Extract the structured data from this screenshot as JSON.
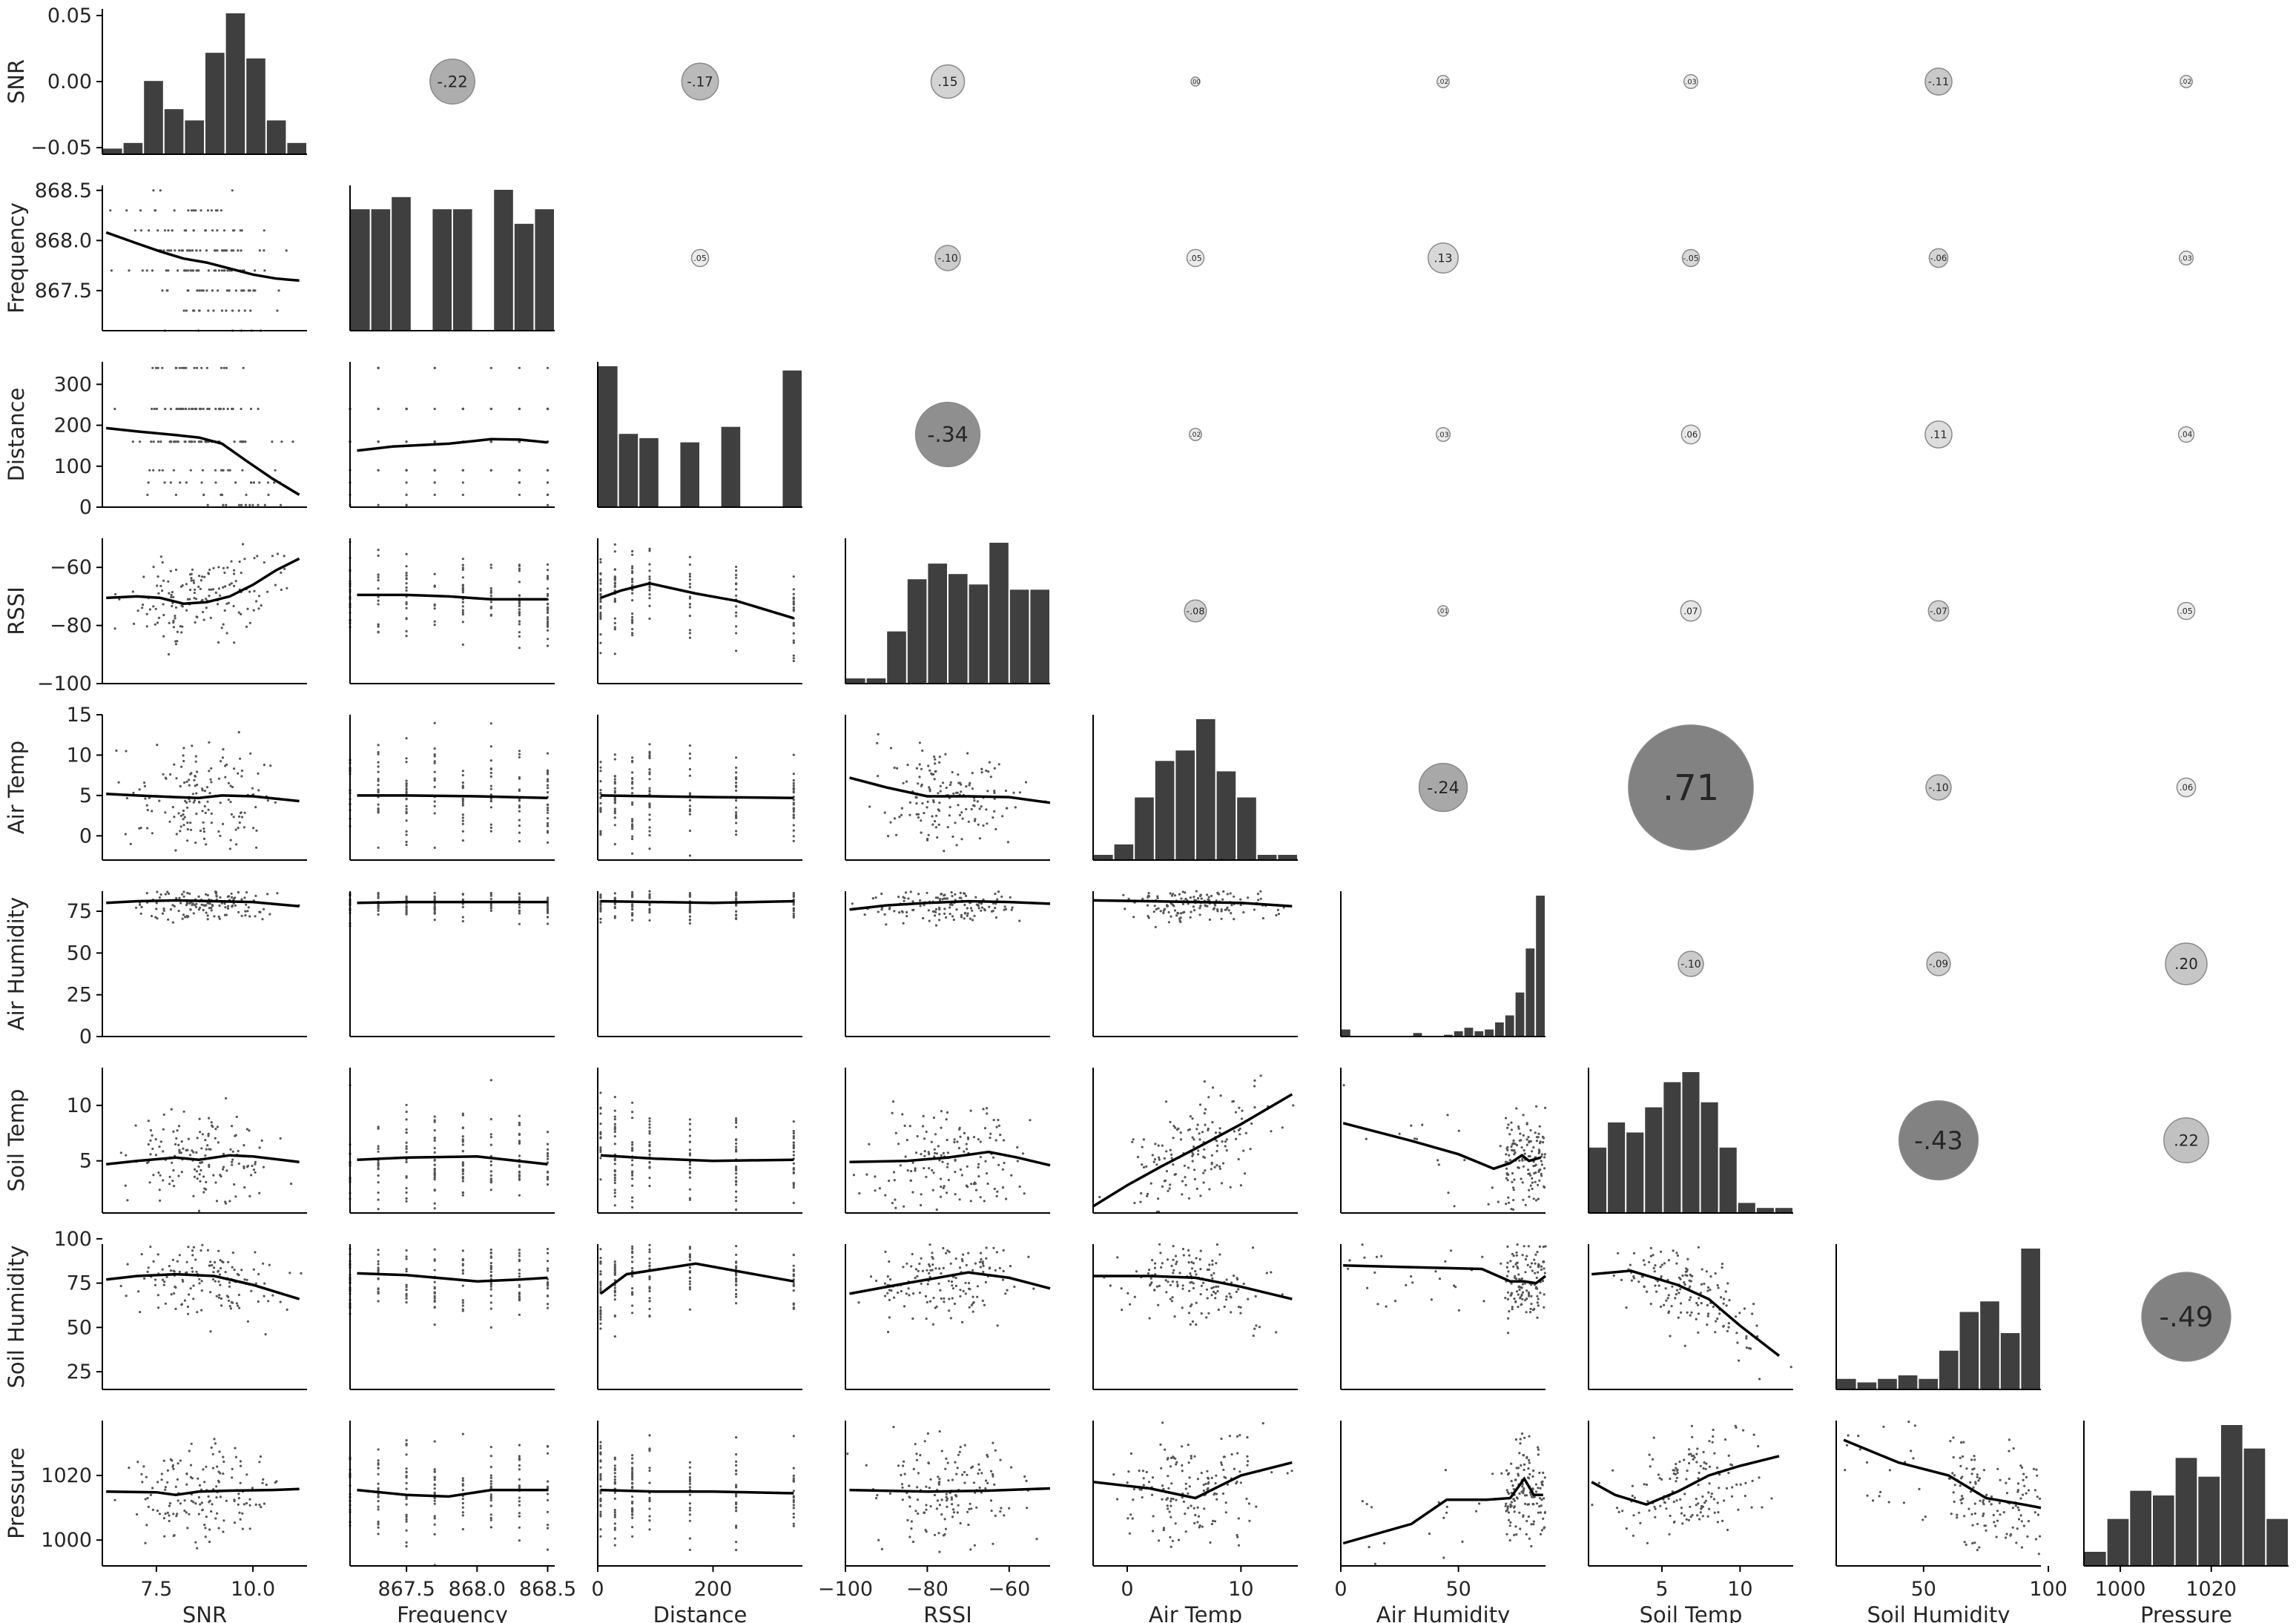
{
  "chart_data": {
    "type": "pairplot",
    "description_layout": "lower: scatter + lowess, diagonal: histogram, upper: correlation bubbles",
    "variables": [
      "SNR",
      "Frequency",
      "Distance",
      "RSSI",
      "Air Temp",
      "Air Humidity",
      "Soil Temp",
      "Soil Humidity",
      "Pressure"
    ],
    "colors": {
      "bars": "#3f3f3f",
      "points": "#555555",
      "line": "#000000"
    },
    "ranges": [
      [
        6.1,
        11.4
      ],
      [
        867.1,
        868.55
      ],
      [
        0,
        355
      ],
      [
        -100,
        -50
      ],
      [
        -3,
        15
      ],
      [
        0,
        87
      ],
      [
        0.3,
        13.4
      ],
      [
        15,
        97
      ],
      [
        992,
        1037
      ]
    ],
    "y_ranges": {
      "SNR": [
        -0.055,
        0.055
      ],
      "Frequency": [
        867.1,
        868.55
      ],
      "Distance": [
        0,
        355
      ],
      "RSSI": [
        -100,
        -50
      ],
      "Air Temp": [
        -3,
        15
      ],
      "Air Humidity": [
        0,
        87
      ],
      "Soil Temp": [
        0.3,
        13.4
      ],
      "Soil Humidity": [
        15,
        97
      ],
      "Pressure": [
        992,
        1037
      ]
    },
    "x_ticks": {
      "SNR": [
        "7.5",
        "10.0"
      ],
      "Frequency": [
        "867.5",
        "868.0",
        "868.5"
      ],
      "Distance": [
        "0",
        "200"
      ],
      "RSSI": [
        "−100",
        "−80",
        "−60"
      ],
      "Air Temp": [
        "0",
        "10"
      ],
      "Air Humidity": [
        "0",
        "50"
      ],
      "Soil Temp": [
        "5",
        "10"
      ],
      "Soil Humidity": [
        "50",
        "100"
      ],
      "Pressure": [
        "1000",
        "1020"
      ]
    },
    "y_ticks": {
      "SNR": [
        "0.05",
        "0.00",
        "−0.05"
      ],
      "Frequency": [
        "868.5",
        "868.0",
        "867.5"
      ],
      "Distance": [
        "300",
        "200",
        "100",
        "0"
      ],
      "RSSI": [
        "−60",
        "−80",
        "−100"
      ],
      "Air Temp": [
        "15",
        "10",
        "5",
        "0"
      ],
      "Air Humidity": [
        "75",
        "50",
        "25",
        "0"
      ],
      "Soil Temp": [
        "10",
        "5"
      ],
      "Soil Humidity": [
        "100",
        "75",
        "50",
        "25"
      ],
      "Pressure": [
        "1020",
        "1000"
      ]
    },
    "histograms": [
      [
        1,
        2,
        13,
        8,
        6,
        18,
        25,
        17,
        6,
        2
      ],
      [
        5,
        5,
        5.5,
        0,
        5,
        5,
        0,
        5.8,
        4.4,
        5
      ],
      [
        100,
        52,
        49,
        0,
        46,
        0,
        57,
        0,
        0,
        97
      ],
      [
        1,
        1,
        10,
        20,
        23,
        21,
        19,
        27,
        18,
        18
      ],
      [
        1,
        3,
        12,
        19,
        21,
        27,
        17,
        12,
        1,
        1
      ],
      [
        0.4,
        0,
        0,
        0,
        0,
        0,
        0,
        0.2,
        0,
        0,
        0.1,
        0.3,
        0.5,
        0.3,
        0.4,
        0.8,
        1.2,
        2.5,
        5.0,
        8.0
      ],
      [
        13,
        18,
        16,
        21,
        26,
        28,
        22,
        13,
        2,
        1,
        1
      ],
      [
        3,
        2,
        3,
        4,
        3,
        11,
        22,
        25,
        16,
        40
      ],
      [
        3,
        10,
        16,
        15,
        23,
        19,
        30,
        25,
        10
      ]
    ],
    "correlations": [
      [
        "SNR",
        "Frequency",
        "-.22"
      ],
      [
        "SNR",
        "Distance",
        "-.17"
      ],
      [
        "SNR",
        "RSSI",
        ".15"
      ],
      [
        "SNR",
        "Air Temp",
        ".00"
      ],
      [
        "SNR",
        "Air Humidity",
        ".02"
      ],
      [
        "SNR",
        "Soil Temp",
        ".03"
      ],
      [
        "SNR",
        "Soil Humidity",
        "-.11"
      ],
      [
        "SNR",
        "Pressure",
        ".02"
      ],
      [
        "Frequency",
        "Distance",
        ".05"
      ],
      [
        "Frequency",
        "RSSI",
        "-.10"
      ],
      [
        "Frequency",
        "Air Temp",
        ".05"
      ],
      [
        "Frequency",
        "Air Humidity",
        ".13"
      ],
      [
        "Frequency",
        "Soil Temp",
        "-.05"
      ],
      [
        "Frequency",
        "Soil Humidity",
        "-.06"
      ],
      [
        "Frequency",
        "Pressure",
        ".03"
      ],
      [
        "Distance",
        "RSSI",
        "-.34"
      ],
      [
        "Distance",
        "Air Temp",
        ".02"
      ],
      [
        "Distance",
        "Air Humidity",
        ".03"
      ],
      [
        "Distance",
        "Soil Temp",
        ".06"
      ],
      [
        "Distance",
        "Soil Humidity",
        ".11"
      ],
      [
        "Distance",
        "Pressure",
        ".04"
      ],
      [
        "RSSI",
        "Air Temp",
        "-.08"
      ],
      [
        "RSSI",
        "Air Humidity",
        ".01"
      ],
      [
        "RSSI",
        "Soil Temp",
        ".07"
      ],
      [
        "RSSI",
        "Soil Humidity",
        "-.07"
      ],
      [
        "RSSI",
        "Pressure",
        ".05"
      ],
      [
        "Air Temp",
        "Air Humidity",
        "-.24"
      ],
      [
        "Air Temp",
        "Soil Temp",
        ".71"
      ],
      [
        "Air Temp",
        "Soil Humidity",
        "-.10"
      ],
      [
        "Air Temp",
        "Pressure",
        ".06"
      ],
      [
        "Air Humidity",
        "Soil Temp",
        "-.10"
      ],
      [
        "Air Humidity",
        "Soil Humidity",
        "-.09"
      ],
      [
        "Air Humidity",
        "Pressure",
        ".20"
      ],
      [
        "Soil Temp",
        "Soil Humidity",
        "-.43"
      ],
      [
        "Soil Temp",
        "Pressure",
        ".22"
      ],
      [
        "Soil Humidity",
        "Pressure",
        "-.49"
      ]
    ],
    "lowess": {
      "Frequency|SNR": [
        [
          6.2,
          868.08
        ],
        [
          7.0,
          867.97
        ],
        [
          7.6,
          867.89
        ],
        [
          8.2,
          867.82
        ],
        [
          8.8,
          867.78
        ],
        [
          9.4,
          867.72
        ],
        [
          10.0,
          867.66
        ],
        [
          10.6,
          867.62
        ],
        [
          11.2,
          867.6
        ]
      ],
      "Distance|SNR": [
        [
          6.2,
          193
        ],
        [
          7.0,
          185
        ],
        [
          8.0,
          176
        ],
        [
          8.6,
          170
        ],
        [
          9.2,
          155
        ],
        [
          9.8,
          115
        ],
        [
          10.5,
          70
        ],
        [
          11.2,
          30
        ]
      ],
      "Distance|Frequency": [
        [
          867.15,
          138
        ],
        [
          867.4,
          148
        ],
        [
          867.8,
          155
        ],
        [
          868.1,
          166
        ],
        [
          868.3,
          165
        ],
        [
          868.5,
          158
        ]
      ],
      "RSSI|SNR": [
        [
          6.2,
          -70.5
        ],
        [
          7.0,
          -70
        ],
        [
          7.6,
          -70.5
        ],
        [
          8.2,
          -72.5
        ],
        [
          8.8,
          -72
        ],
        [
          9.4,
          -70
        ],
        [
          10.0,
          -66
        ],
        [
          10.6,
          -61
        ],
        [
          11.2,
          -57
        ]
      ],
      "RSSI|Frequency": [
        [
          867.15,
          -69.5
        ],
        [
          867.5,
          -69.5
        ],
        [
          867.8,
          -70
        ],
        [
          868.1,
          -71
        ],
        [
          868.3,
          -71
        ],
        [
          868.5,
          -71
        ]
      ],
      "RSSI|Distance": [
        [
          5,
          -70.5
        ],
        [
          40,
          -68
        ],
        [
          90,
          -65.5
        ],
        [
          170,
          -69
        ],
        [
          240,
          -71.5
        ],
        [
          340,
          -77.5
        ]
      ],
      "Air Temp|SNR": [
        [
          6.2,
          5.2
        ],
        [
          7.0,
          5.0
        ],
        [
          8.0,
          4.8
        ],
        [
          8.6,
          4.7
        ],
        [
          9.2,
          5.0
        ],
        [
          10.0,
          4.9
        ],
        [
          10.6,
          4.6
        ],
        [
          11.2,
          4.3
        ]
      ],
      "Air Temp|Frequency": [
        [
          867.15,
          5.0
        ],
        [
          867.5,
          5.0
        ],
        [
          868.0,
          4.9
        ],
        [
          868.5,
          4.7
        ]
      ],
      "Air Temp|Distance": [
        [
          5,
          5.0
        ],
        [
          100,
          4.9
        ],
        [
          200,
          4.8
        ],
        [
          340,
          4.7
        ]
      ],
      "Air Temp|RSSI": [
        [
          -99,
          7.2
        ],
        [
          -90,
          6.0
        ],
        [
          -80,
          4.9
        ],
        [
          -70,
          4.9
        ],
        [
          -60,
          4.8
        ],
        [
          -50,
          4.1
        ]
      ],
      "Air Humidity|SNR": [
        [
          6.2,
          80
        ],
        [
          7.0,
          81
        ],
        [
          8.0,
          81.5
        ],
        [
          9.0,
          81
        ],
        [
          10.0,
          80.5
        ],
        [
          11.2,
          78
        ]
      ],
      "Air Humidity|Frequency": [
        [
          867.15,
          80
        ],
        [
          867.5,
          80.5
        ],
        [
          868.0,
          80.5
        ],
        [
          868.5,
          80.5
        ]
      ],
      "Air Humidity|Distance": [
        [
          5,
          81
        ],
        [
          100,
          80.5
        ],
        [
          200,
          80
        ],
        [
          340,
          81
        ]
      ],
      "Air Humidity|RSSI": [
        [
          -99,
          76
        ],
        [
          -90,
          78.5
        ],
        [
          -80,
          80
        ],
        [
          -70,
          81
        ],
        [
          -60,
          80.5
        ],
        [
          -50,
          79.5
        ]
      ],
      "Air Humidity|Air Temp": [
        [
          -3,
          81.5
        ],
        [
          2,
          81
        ],
        [
          6,
          80.5
        ],
        [
          10,
          80
        ],
        [
          14.5,
          78
        ]
      ],
      "Soil Temp|SNR": [
        [
          6.2,
          4.7
        ],
        [
          7.0,
          5.0
        ],
        [
          8.0,
          5.3
        ],
        [
          8.6,
          5.1
        ],
        [
          9.4,
          5.5
        ],
        [
          10.0,
          5.4
        ],
        [
          11.2,
          4.9
        ]
      ],
      "Soil Temp|Frequency": [
        [
          867.15,
          5.1
        ],
        [
          867.5,
          5.3
        ],
        [
          868.0,
          5.4
        ],
        [
          868.5,
          4.7
        ]
      ],
      "Soil Temp|Distance": [
        [
          5,
          5.5
        ],
        [
          100,
          5.2
        ],
        [
          200,
          5.0
        ],
        [
          340,
          5.1
        ]
      ],
      "Soil Temp|RSSI": [
        [
          -99,
          4.9
        ],
        [
          -85,
          5.0
        ],
        [
          -75,
          5.3
        ],
        [
          -65,
          5.8
        ],
        [
          -58,
          5.3
        ],
        [
          -50,
          4.6
        ]
      ],
      "Soil Temp|Air Temp": [
        [
          -3,
          0.9
        ],
        [
          0,
          2.8
        ],
        [
          3,
          4.5
        ],
        [
          6,
          6.1
        ],
        [
          10,
          8.3
        ],
        [
          14.5,
          11.0
        ]
      ],
      "Soil Temp|Air Humidity": [
        [
          1,
          8.4
        ],
        [
          30,
          6.8
        ],
        [
          50,
          5.6
        ],
        [
          65,
          4.3
        ],
        [
          72,
          4.8
        ],
        [
          77,
          5.5
        ],
        [
          80,
          5.0
        ],
        [
          85,
          5.3
        ]
      ],
      "Soil Humidity|SNR": [
        [
          6.2,
          77
        ],
        [
          7.0,
          79
        ],
        [
          8.0,
          80
        ],
        [
          9.0,
          79
        ],
        [
          10.0,
          74
        ],
        [
          11.2,
          66
        ]
      ],
      "Soil Humidity|Frequency": [
        [
          867.15,
          80.5
        ],
        [
          867.5,
          79.5
        ],
        [
          868.0,
          76
        ],
        [
          868.3,
          77
        ],
        [
          868.5,
          78
        ]
      ],
      "Soil Humidity|Distance": [
        [
          5,
          69
        ],
        [
          50,
          80
        ],
        [
          170,
          86
        ],
        [
          340,
          76
        ]
      ],
      "Soil Humidity|RSSI": [
        [
          -99,
          69
        ],
        [
          -85,
          75
        ],
        [
          -70,
          81
        ],
        [
          -60,
          78
        ],
        [
          -50,
          72
        ]
      ],
      "Soil Humidity|Air Temp": [
        [
          -3,
          79
        ],
        [
          2,
          79
        ],
        [
          6,
          78
        ],
        [
          10,
          73
        ],
        [
          14.5,
          66
        ]
      ],
      "Soil Humidity|Air Humidity": [
        [
          1,
          85
        ],
        [
          30,
          84
        ],
        [
          60,
          83
        ],
        [
          72,
          76
        ],
        [
          78,
          76
        ],
        [
          83,
          75
        ],
        [
          87,
          79
        ]
      ],
      "Soil Humidity|Soil Temp": [
        [
          0.5,
          80
        ],
        [
          3,
          82
        ],
        [
          6,
          74
        ],
        [
          8,
          66
        ],
        [
          10,
          51
        ],
        [
          12.5,
          34
        ]
      ],
      "Pressure|SNR": [
        [
          6.2,
          1015
        ],
        [
          7.5,
          1014.8
        ],
        [
          8.0,
          1014
        ],
        [
          8.6,
          1015
        ],
        [
          9.4,
          1015.3
        ],
        [
          10.5,
          1015.5
        ],
        [
          11.2,
          1015.8
        ]
      ],
      "Pressure|Frequency": [
        [
          867.15,
          1015.5
        ],
        [
          867.5,
          1014
        ],
        [
          867.8,
          1013.5
        ],
        [
          868.1,
          1015.5
        ],
        [
          868.5,
          1015.5
        ]
      ],
      "Pressure|Distance": [
        [
          5,
          1015.5
        ],
        [
          100,
          1015
        ],
        [
          200,
          1015
        ],
        [
          340,
          1014.5
        ]
      ],
      "Pressure|RSSI": [
        [
          -99,
          1015.5
        ],
        [
          -80,
          1015
        ],
        [
          -65,
          1015.3
        ],
        [
          -50,
          1016
        ]
      ],
      "Pressure|Air Temp": [
        [
          -3,
          1018
        ],
        [
          2,
          1016
        ],
        [
          6,
          1013
        ],
        [
          10,
          1020
        ],
        [
          14.5,
          1024
        ]
      ],
      "Pressure|Air Humidity": [
        [
          1,
          999
        ],
        [
          30,
          1005
        ],
        [
          45,
          1012.5
        ],
        [
          62,
          1012.5
        ],
        [
          72,
          1013
        ],
        [
          78,
          1019
        ],
        [
          82,
          1014
        ],
        [
          86,
          1014
        ]
      ],
      "Pressure|Soil Temp": [
        [
          0.5,
          1018
        ],
        [
          2,
          1014
        ],
        [
          4,
          1011
        ],
        [
          6,
          1015
        ],
        [
          8,
          1020
        ],
        [
          10,
          1023
        ],
        [
          12.5,
          1026
        ]
      ],
      "Pressure|Soil Humidity": [
        [
          18,
          1031
        ],
        [
          40,
          1024
        ],
        [
          60,
          1020
        ],
        [
          75,
          1013
        ],
        [
          90,
          1011
        ],
        [
          97,
          1010
        ]
      ]
    }
  }
}
